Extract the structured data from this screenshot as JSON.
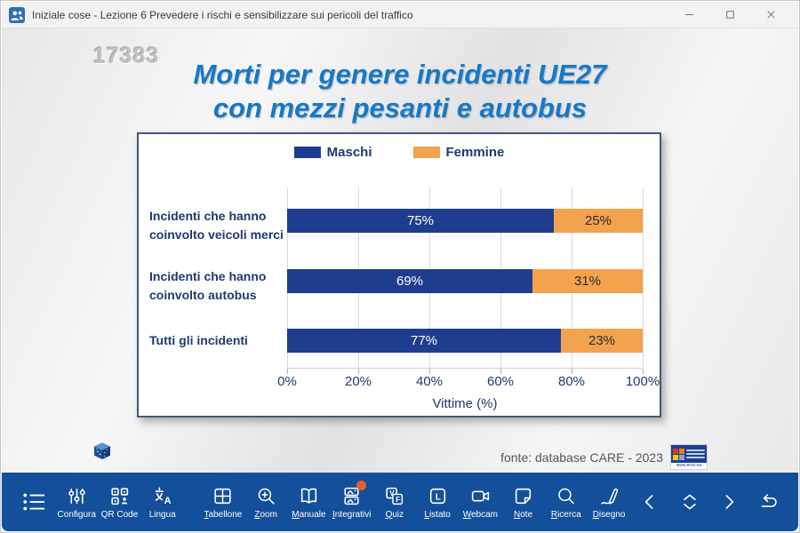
{
  "window": {
    "title": "Iniziale cose - Lezione 6 Prevedere i rischi e sensibilizzare sui pericoli del traffico",
    "controls": [
      {
        "icon": "minimize-icon"
      },
      {
        "icon": "maximize-icon"
      },
      {
        "icon": "close-icon"
      }
    ]
  },
  "slide": {
    "code": "17383",
    "title_lines": [
      "Morti per genere incidenti UE27",
      "con mezzi pesanti e autobus"
    ],
    "title_color": "#1678c8",
    "source": "fonte: database CARE -  2023",
    "logo_caption": "www.erso.eu"
  },
  "chart_data": {
    "type": "bar",
    "orientation": "horizontal",
    "stacked": true,
    "categories": [
      "Incidenti che hanno coinvolto veicoli merci",
      "Incidenti che hanno coinvolto autobus",
      "Tutti gli incidenti"
    ],
    "series": [
      {
        "name": "Maschi",
        "color": "#1e3d8f",
        "text_color": "#ffffff",
        "values": [
          75,
          69,
          77
        ]
      },
      {
        "name": "Femmine",
        "color": "#f3a24e",
        "text_color": "#2b2b2b",
        "values": [
          25,
          31,
          23
        ]
      }
    ],
    "value_labels": [
      [
        "75%",
        "25%"
      ],
      [
        "69%",
        "31%"
      ],
      [
        "77%",
        "23%"
      ]
    ],
    "xlabel": "Vittime (%)",
    "x_ticks": [
      "0%",
      "20%",
      "40%",
      "60%",
      "80%",
      "100%"
    ],
    "xlim": [
      0,
      100
    ],
    "grid": true,
    "legend_position": "top"
  },
  "toolbar": {
    "background": "#134f9a",
    "badge_color": "#e8612c",
    "items": [
      {
        "icon": "menu-list-icon",
        "label": "",
        "underline": false
      },
      {
        "icon": "sliders-icon",
        "label": "Configura",
        "underline": false
      },
      {
        "icon": "qr-code-icon",
        "label": "QR Code",
        "underline": false
      },
      {
        "icon": "translate-icon",
        "label": "Lingua",
        "underline": false
      },
      {
        "icon": "grid-board-icon",
        "label": "Tabellone",
        "underline": true,
        "group_gap": true
      },
      {
        "icon": "zoom-plus-icon",
        "label": "Zoom",
        "underline": true
      },
      {
        "icon": "open-book-icon",
        "label": "Manuale",
        "underline": true
      },
      {
        "icon": "frames-icon",
        "label": "Integrativi",
        "underline": true,
        "badge": true
      },
      {
        "icon": "quiz-vf-icon",
        "label": "Quiz",
        "underline": true
      },
      {
        "icon": "listing-icon",
        "label": "Listato",
        "underline": true
      },
      {
        "icon": "webcam-icon",
        "label": "Webcam",
        "underline": true
      },
      {
        "icon": "note-icon",
        "label": "Note",
        "underline": true
      },
      {
        "icon": "search-icon",
        "label": "Ricerca",
        "underline": true
      },
      {
        "icon": "pen-icon",
        "label": "Disegno",
        "underline": true
      }
    ],
    "nav": [
      {
        "icon": "chevron-left-icon",
        "name": "previous-button"
      },
      {
        "icon": "chevrons-updown-icon",
        "name": "updown-button"
      },
      {
        "icon": "chevron-right-icon",
        "name": "next-button"
      },
      {
        "icon": "return-arrow-icon",
        "name": "return-button"
      }
    ]
  }
}
